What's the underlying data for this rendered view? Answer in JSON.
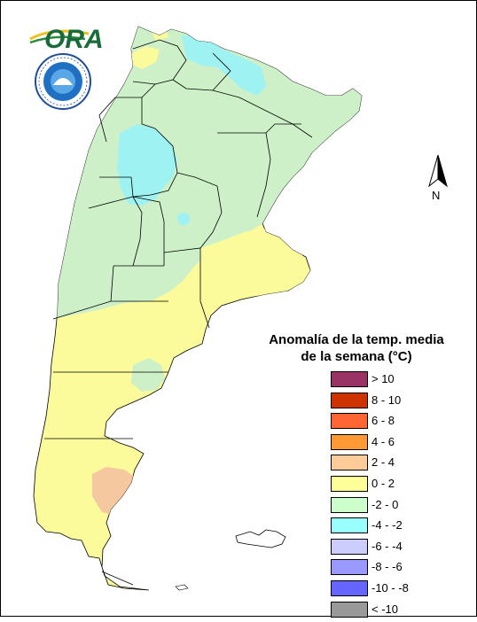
{
  "logo": {
    "text": "ORA"
  },
  "seal": {
    "name": "smn-seal"
  },
  "north_arrow": {
    "label": "N"
  },
  "legend": {
    "title_line1": "Anomalía de la temp. media",
    "title_line2": "de la semana (°C)",
    "items": [
      {
        "label": "> 10",
        "color": "#993366"
      },
      {
        "label": "8 - 10",
        "color": "#cc3300"
      },
      {
        "label": "6 - 8",
        "color": "#ff6633"
      },
      {
        "label": "4 - 6",
        "color": "#ff9933"
      },
      {
        "label": "2 - 4",
        "color": "#ffcc99"
      },
      {
        "label": "0 - 2",
        "color": "#ffff99"
      },
      {
        "label": "-2 - 0",
        "color": "#ccffcc"
      },
      {
        "label": "-4 - -2",
        "color": "#99ffff"
      },
      {
        "label": "-6 - -4",
        "color": "#ccccff"
      },
      {
        "label": "-8 - -6",
        "color": "#9999ff"
      },
      {
        "label": "-10 - -8",
        "color": "#6666ff"
      },
      {
        "label": "< -10",
        "color": "#999999"
      }
    ]
  },
  "colors": {
    "zone_0_2": "#fbfb9c",
    "zone_m2_0": "#cdf0c8",
    "zone_m4_m2": "#9ff2f2",
    "zone_2_4": "#f6c8a0",
    "boundary": "#000000"
  }
}
